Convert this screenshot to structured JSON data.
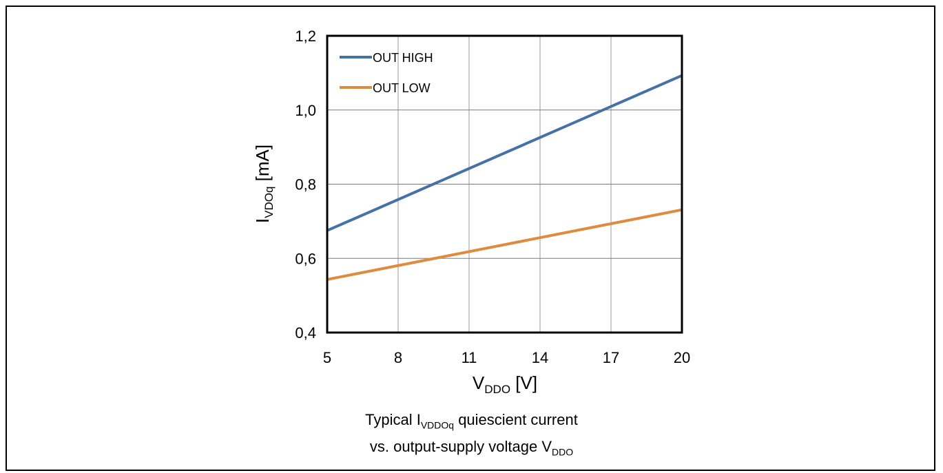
{
  "chart_data": {
    "type": "line",
    "xlabel": {
      "main": "V",
      "sub": "DDO",
      "unit": " [V]"
    },
    "ylabel": {
      "main": "I",
      "sub": "VDOq",
      "unit": " [mA]"
    },
    "xlim": [
      5,
      20
    ],
    "ylim": [
      0.4,
      1.2
    ],
    "x_ticks": [
      5,
      8,
      11,
      14,
      17,
      20
    ],
    "x_tick_labels": [
      "5",
      "8",
      "11",
      "14",
      "17",
      "20"
    ],
    "y_ticks": [
      0.4,
      0.6,
      0.8,
      1.0,
      1.2
    ],
    "y_tick_labels": [
      "0,4",
      "0,6",
      "0,8",
      "1,0",
      "1,2"
    ],
    "grid": true,
    "legend_position": "top-left",
    "series": [
      {
        "name": "OUT HIGH",
        "color": "#4472a8",
        "x": [
          5,
          20
        ],
        "y": [
          0.675,
          1.093
        ]
      },
      {
        "name": "OUT LOW",
        "color": "#e08a3c",
        "x": [
          5,
          20
        ],
        "y": [
          0.543,
          0.731
        ]
      }
    ]
  },
  "caption": {
    "line1_prefix": "Typical I",
    "line1_sub": "VDDOq",
    "line1_suffix": " quiescient current",
    "line2_prefix": "vs. output-supply voltage V",
    "line2_sub": "DDO"
  }
}
